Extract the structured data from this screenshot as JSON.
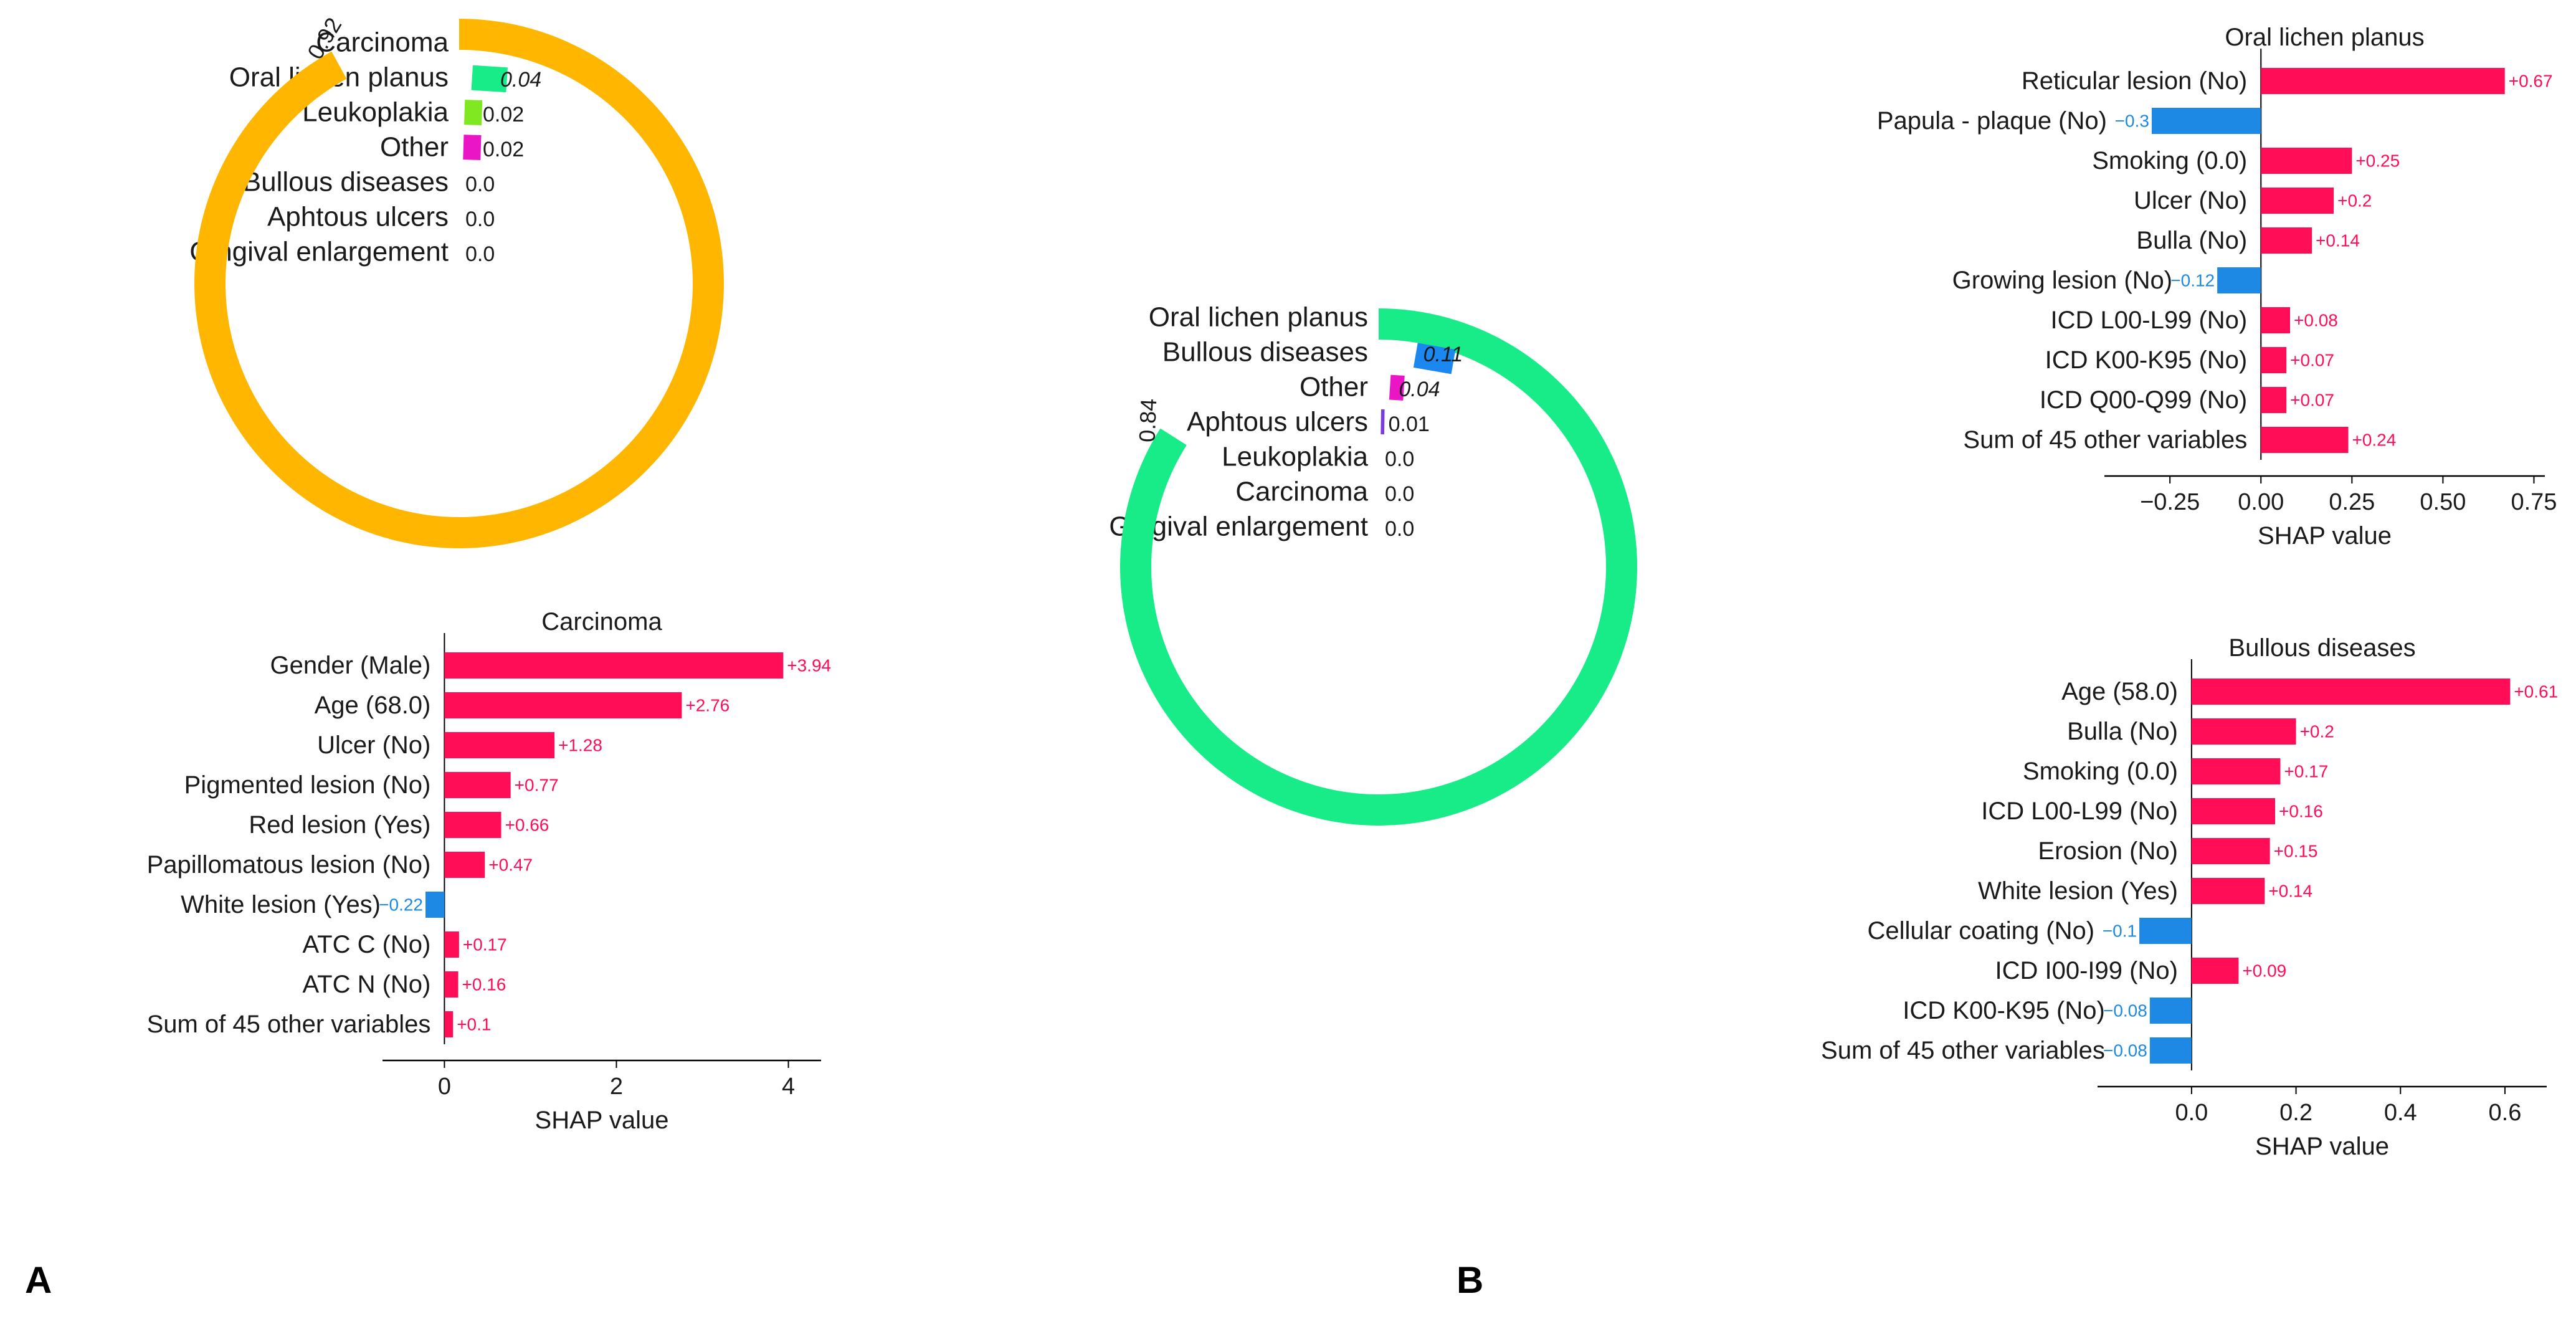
{
  "panels": {
    "a": "A",
    "b": "B"
  },
  "colors": {
    "Carcinoma": "#ffb600",
    "Oral lichen planus": "#18ec89",
    "Leukoplakia": "#7fe820",
    "Other": "#ea15c4",
    "Bullous diseases": "#1a88f0",
    "Aphtous ulcers": "#7a3ddb",
    "Gingival enlargement": "#9a9a9a",
    "positive": "#ff0d57",
    "negative": "#1e88e5",
    "axis": "#000000",
    "text": "#1a1a1a"
  },
  "chart_data": [
    {
      "type": "pie",
      "subtype": "radial-probability",
      "panel": "A",
      "categories": [
        "Carcinoma",
        "Oral lichen planus",
        "Leukoplakia",
        "Other",
        "Bullous diseases",
        "Aphtous ulcers",
        "Gingival enlargement"
      ],
      "values": [
        0.92,
        0.04,
        0.02,
        0.02,
        0.0,
        0.0,
        0.0
      ],
      "value_labels": [
        "0.92",
        "0.04",
        "0.02",
        "0.02",
        "0.0",
        "0.0",
        "0.0"
      ]
    },
    {
      "type": "bar",
      "orientation": "horizontal",
      "panel": "A",
      "title": "Carcinoma",
      "xlabel": "SHAP value",
      "categories": [
        "Gender (Male)",
        "Age (68.0)",
        "Ulcer (No)",
        "Pigmented lesion (No)",
        "Red lesion (Yes)",
        "Papillomatous lesion (No)",
        "White lesion (Yes)",
        "ATC C (No)",
        "ATC N (No)",
        "Sum of 45 other variables"
      ],
      "values": [
        3.94,
        2.76,
        1.28,
        0.77,
        0.66,
        0.47,
        -0.22,
        0.17,
        0.16,
        0.1
      ],
      "value_labels": [
        "+3.94",
        "+2.76",
        "+1.28",
        "+0.77",
        "+0.66",
        "+0.47",
        "−0.22",
        "+0.17",
        "+0.16",
        "+0.1"
      ],
      "xticks": [
        0,
        2,
        4
      ],
      "xtick_labels": [
        "0",
        "2",
        "4"
      ],
      "xlim": [
        -0.72,
        4.38
      ]
    },
    {
      "type": "pie",
      "subtype": "radial-probability",
      "panel": "B",
      "categories": [
        "Oral lichen planus",
        "Bullous diseases",
        "Other",
        "Aphtous ulcers",
        "Leukoplakia",
        "Carcinoma",
        "Gingival enlargement"
      ],
      "values": [
        0.84,
        0.11,
        0.04,
        0.01,
        0.0,
        0.0,
        0.0
      ],
      "value_labels": [
        "0.84",
        "0.11",
        "0.04",
        "0.01",
        "0.0",
        "0.0",
        "0.0"
      ]
    },
    {
      "type": "bar",
      "orientation": "horizontal",
      "panel": "B",
      "title": "Oral lichen planus",
      "xlabel": "SHAP value",
      "categories": [
        "Reticular lesion (No)",
        "Papula - plaque (No)",
        "Smoking (0.0)",
        "Ulcer (No)",
        "Bulla (No)",
        "Growing lesion (No)",
        "ICD L00-L99 (No)",
        "ICD K00-K95 (No)",
        "ICD Q00-Q99 (No)",
        "Sum of 45 other variables"
      ],
      "values": [
        0.67,
        -0.3,
        0.25,
        0.2,
        0.14,
        -0.12,
        0.08,
        0.07,
        0.07,
        0.24
      ],
      "value_labels": [
        "+0.67",
        "−0.3",
        "+0.25",
        "+0.2",
        "+0.14",
        "−0.12",
        "+0.08",
        "+0.07",
        "+0.07",
        "+0.24"
      ],
      "xticks": [
        -0.25,
        0.0,
        0.25,
        0.5,
        0.75
      ],
      "xtick_labels": [
        "−0.25",
        "0.00",
        "0.25",
        "0.50",
        "0.75"
      ],
      "xlim": [
        -0.43,
        0.78
      ]
    },
    {
      "type": "bar",
      "orientation": "horizontal",
      "panel": "B",
      "title": "Bullous diseases",
      "xlabel": "SHAP value",
      "categories": [
        "Age (58.0)",
        "Bulla (No)",
        "Smoking (0.0)",
        "ICD L00-L99 (No)",
        "Erosion (No)",
        "White lesion (Yes)",
        "Cellular coating (No)",
        "ICD I00-I99 (No)",
        "ICD K00-K95 (No)",
        "Sum of 45 other variables"
      ],
      "values": [
        0.61,
        0.2,
        0.17,
        0.16,
        0.15,
        0.14,
        -0.1,
        0.09,
        -0.08,
        -0.08
      ],
      "value_labels": [
        "+0.61",
        "+0.2",
        "+0.17",
        "+0.16",
        "+0.15",
        "+0.14",
        "−0.1",
        "+0.09",
        "−0.08",
        "−0.08"
      ],
      "xticks": [
        0.0,
        0.2,
        0.4,
        0.6
      ],
      "xtick_labels": [
        "0.0",
        "0.2",
        "0.4",
        "0.6"
      ],
      "xlim": [
        -0.18,
        0.68
      ]
    }
  ]
}
